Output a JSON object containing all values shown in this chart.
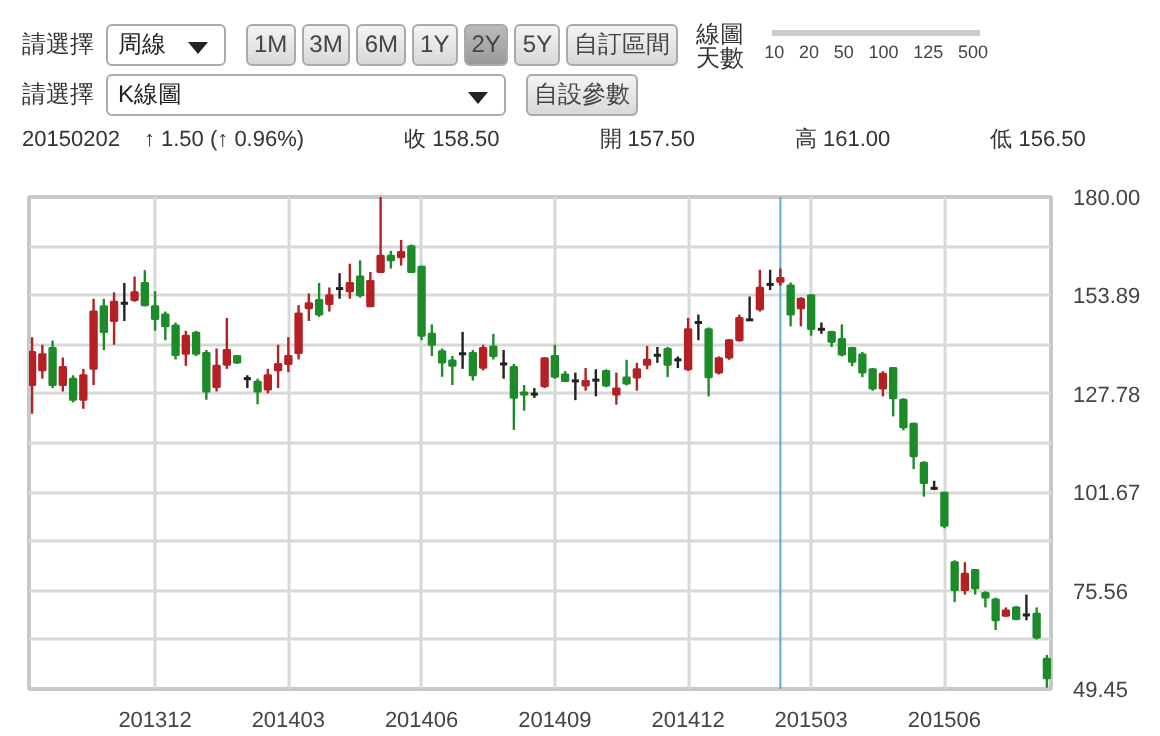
{
  "chart_data": {
    "type": "candlestick",
    "categories": [
      null,
      null,
      null,
      null,
      null,
      null,
      null,
      null,
      null,
      null,
      null,
      null,
      "201312",
      null,
      null,
      null,
      null,
      null,
      null,
      null,
      null,
      null,
      null,
      null,
      null,
      "201403",
      null,
      null,
      null,
      null,
      null,
      null,
      null,
      null,
      null,
      null,
      null,
      null,
      "201406",
      null,
      null,
      null,
      null,
      null,
      null,
      null,
      null,
      null,
      null,
      null,
      null,
      "201409",
      null,
      null,
      null,
      null,
      null,
      null,
      null,
      null,
      null,
      null,
      null,
      null,
      "201412",
      null,
      null,
      null,
      null,
      null,
      null,
      null,
      null,
      null,
      null,
      null,
      "201503",
      null,
      null,
      null,
      null,
      null,
      null,
      null,
      null,
      null,
      null,
      null,
      null,
      "201506",
      null,
      null,
      null,
      null,
      null,
      null,
      null,
      null,
      null,
      null
    ],
    "ohlc": [
      [
        130.1,
        142.8,
        122.5,
        138.9
      ],
      [
        134.0,
        140.8,
        131.8,
        138.3
      ],
      [
        139.9,
        141.9,
        129.3,
        130.1
      ],
      [
        130.1,
        137.4,
        128.4,
        134.9
      ],
      [
        131.8,
        132.7,
        125.5,
        126.2
      ],
      [
        126.2,
        134.4,
        123.8,
        132.7
      ],
      [
        134.4,
        153.0,
        130.1,
        149.6
      ],
      [
        151.0,
        153.0,
        139.4,
        144.2
      ],
      [
        147.1,
        154.7,
        140.8,
        152.2
      ],
      [
        151.8,
        157.2,
        147.1,
        151.8
      ],
      [
        152.7,
        158.9,
        152.2,
        154.7
      ],
      [
        157.2,
        160.6,
        151.0,
        151.3
      ],
      [
        151.0,
        155.0,
        144.5,
        147.6
      ],
      [
        148.8,
        149.6,
        142.0,
        145.7
      ],
      [
        145.9,
        146.7,
        136.9,
        138.1
      ],
      [
        138.4,
        144.5,
        135.2,
        143.2
      ],
      [
        144.0,
        144.5,
        137.8,
        138.4
      ],
      [
        138.6,
        139.4,
        126.2,
        128.4
      ],
      [
        129.6,
        139.8,
        128.4,
        135.2
      ],
      [
        135.5,
        147.9,
        134.4,
        139.4
      ],
      [
        137.8,
        138.1,
        135.7,
        136.1
      ],
      [
        131.8,
        132.7,
        129.3,
        131.8
      ],
      [
        131.0,
        131.8,
        125.0,
        128.4
      ],
      [
        128.9,
        134.4,
        127.9,
        132.7
      ],
      [
        134.0,
        140.8,
        129.3,
        135.7
      ],
      [
        135.7,
        142.8,
        133.5,
        137.8
      ],
      [
        138.6,
        151.3,
        136.9,
        149.1
      ],
      [
        150.5,
        154.4,
        147.1,
        151.8
      ],
      [
        152.7,
        157.2,
        148.2,
        148.8
      ],
      [
        151.6,
        156.0,
        149.6,
        153.9
      ],
      [
        155.7,
        159.8,
        153.0,
        155.7
      ],
      [
        155.0,
        162.3,
        153.0,
        157.2
      ],
      [
        158.9,
        163.2,
        153.3,
        153.9
      ],
      [
        151.0,
        160.1,
        151.0,
        157.7
      ],
      [
        160.1,
        180.0,
        160.1,
        164.4
      ],
      [
        164.4,
        165.7,
        161.0,
        163.2
      ],
      [
        164.0,
        168.6,
        161.8,
        165.4
      ],
      [
        166.9,
        167.4,
        159.8,
        160.1
      ],
      [
        161.5,
        161.8,
        142.0,
        143.2
      ],
      [
        143.7,
        146.2,
        137.8,
        140.8
      ],
      [
        139.1,
        139.8,
        132.3,
        136.1
      ],
      [
        136.6,
        137.8,
        130.1,
        135.2
      ],
      [
        138.4,
        144.2,
        134.4,
        138.4
      ],
      [
        138.6,
        139.4,
        131.3,
        132.7
      ],
      [
        134.7,
        140.8,
        134.0,
        139.9
      ],
      [
        140.3,
        143.7,
        136.9,
        137.8
      ],
      [
        135.7,
        139.4,
        131.8,
        135.7
      ],
      [
        134.9,
        135.7,
        118.2,
        126.7
      ],
      [
        128.1,
        130.1,
        123.3,
        127.6
      ],
      [
        127.7,
        129.3,
        126.7,
        127.7
      ],
      [
        129.8,
        137.4,
        129.3,
        137.2
      ],
      [
        137.8,
        140.8,
        131.8,
        132.3
      ],
      [
        132.9,
        133.8,
        130.9,
        131.2
      ],
      [
        131.2,
        133.4,
        126.1,
        131.2
      ],
      [
        130.0,
        134.6,
        128.6,
        131.2
      ],
      [
        131.4,
        134.3,
        127.1,
        131.4
      ],
      [
        133.8,
        134.3,
        129.5,
        130.0
      ],
      [
        127.6,
        133.4,
        124.9,
        129.2
      ],
      [
        132.1,
        136.8,
        130.0,
        130.5
      ],
      [
        132.1,
        136.0,
        128.6,
        134.3
      ],
      [
        135.5,
        140.5,
        134.3,
        136.8
      ],
      [
        138.0,
        140.2,
        136.0,
        138.0
      ],
      [
        139.7,
        140.2,
        132.2,
        135.5
      ],
      [
        136.8,
        137.7,
        134.6,
        136.8
      ],
      [
        134.3,
        147.9,
        133.8,
        144.9
      ],
      [
        146.7,
        148.8,
        142.0,
        146.7
      ],
      [
        144.9,
        145.4,
        127.1,
        132.2
      ],
      [
        133.4,
        137.7,
        132.9,
        137.2
      ],
      [
        137.4,
        142.3,
        136.8,
        142.0
      ],
      [
        142.0,
        148.8,
        141.6,
        147.9
      ],
      [
        147.4,
        153.6,
        147.1,
        147.4
      ],
      [
        150.2,
        160.7,
        149.6,
        155.9
      ],
      [
        156.8,
        160.7,
        155.3,
        156.8
      ],
      [
        157.5,
        161.0,
        156.5,
        158.5
      ],
      [
        156.5,
        157.3,
        145.7,
        148.8
      ],
      [
        150.5,
        153.4,
        145.7,
        153.0
      ],
      [
        153.9,
        154.2,
        143.2,
        145.0
      ],
      [
        144.9,
        146.7,
        143.7,
        144.9
      ],
      [
        144.2,
        144.5,
        140.2,
        141.6
      ],
      [
        142.3,
        146.2,
        137.7,
        138.2
      ],
      [
        139.9,
        140.2,
        135.1,
        136.3
      ],
      [
        138.2,
        138.9,
        132.2,
        133.4
      ],
      [
        134.3,
        134.6,
        128.6,
        129.2
      ],
      [
        129.2,
        133.8,
        127.1,
        133.1
      ],
      [
        134.6,
        134.6,
        121.8,
        126.6
      ],
      [
        126.2,
        126.6,
        118.1,
        118.9
      ],
      [
        119.8,
        120.1,
        107.8,
        111.2
      ],
      [
        109.5,
        109.9,
        100.5,
        104.1
      ],
      [
        102.7,
        104.7,
        102.2,
        102.7
      ],
      [
        101.5,
        101.8,
        92.1,
        92.8
      ],
      [
        83.1,
        83.6,
        72.5,
        75.7
      ],
      [
        75.7,
        83.1,
        74.5,
        80.0
      ],
      [
        81.0,
        81.3,
        74.5,
        76.2
      ],
      [
        74.9,
        75.4,
        71.1,
        73.7
      ],
      [
        73.2,
        73.7,
        65.1,
        67.7
      ],
      [
        68.9,
        71.1,
        68.6,
        70.3
      ],
      [
        71.1,
        71.5,
        67.7,
        68.0
      ],
      [
        69.1,
        74.5,
        67.7,
        69.1
      ],
      [
        69.4,
        71.1,
        62.6,
        63.1
      ],
      [
        57.5,
        58.5,
        49.8,
        52.3
      ]
    ],
    "colors": [
      "#b52025",
      "#b52025",
      "#1e8b2a",
      "#b52025",
      "#1e8b2a",
      "#b52025",
      "#b52025",
      "#1e8b2a",
      "#b52025",
      "#222222",
      "#b52025",
      "#1e8b2a",
      "#1e8b2a",
      "#1e8b2a",
      "#1e8b2a",
      "#b52025",
      "#1e8b2a",
      "#1e8b2a",
      "#b52025",
      "#b52025",
      "#1e8b2a",
      "#222222",
      "#1e8b2a",
      "#b52025",
      "#b52025",
      "#b52025",
      "#b52025",
      "#b52025",
      "#1e8b2a",
      "#b52025",
      "#222222",
      "#b52025",
      "#1e8b2a",
      "#b52025",
      "#b52025",
      "#1e8b2a",
      "#b52025",
      "#1e8b2a",
      "#1e8b2a",
      "#1e8b2a",
      "#1e8b2a",
      "#1e8b2a",
      "#222222",
      "#1e8b2a",
      "#b52025",
      "#1e8b2a",
      "#222222",
      "#1e8b2a",
      "#1e8b2a",
      "#222222",
      "#b52025",
      "#1e8b2a",
      "#1e8b2a",
      "#222222",
      "#b52025",
      "#222222",
      "#1e8b2a",
      "#b52025",
      "#1e8b2a",
      "#b52025",
      "#b52025",
      "#222222",
      "#1e8b2a",
      "#222222",
      "#b52025",
      "#222222",
      "#1e8b2a",
      "#b52025",
      "#b52025",
      "#b52025",
      "#222222",
      "#b52025",
      "#222222",
      "#b52025",
      "#1e8b2a",
      "#b52025",
      "#1e8b2a",
      "#222222",
      "#1e8b2a",
      "#1e8b2a",
      "#1e8b2a",
      "#1e8b2a",
      "#1e8b2a",
      "#b52025",
      "#1e8b2a",
      "#1e8b2a",
      "#1e8b2a",
      "#1e8b2a",
      "#222222",
      "#1e8b2a",
      "#1e8b2a",
      "#b52025",
      "#1e8b2a",
      "#1e8b2a",
      "#1e8b2a",
      "#b52025",
      "#1e8b2a",
      "#222222",
      "#1e8b2a",
      "#1e8b2a"
    ],
    "ylim": [
      49.45,
      180
    ],
    "yticks": [
      {
        "value": 49.45,
        "label": "49.45"
      },
      {
        "value": 62.505,
        "label": null
      },
      {
        "value": 75.56,
        "label": "75.56"
      },
      {
        "value": 88.615,
        "label": null
      },
      {
        "value": 101.67,
        "label": "101.67"
      },
      {
        "value": 114.725,
        "label": null
      },
      {
        "value": 127.78,
        "label": "127.78"
      },
      {
        "value": 140.835,
        "label": null
      },
      {
        "value": 153.89,
        "label": "153.89"
      },
      {
        "value": 166.945,
        "label": null
      },
      {
        "value": 180,
        "label": "180.00"
      }
    ],
    "grid": true,
    "annotations": [
      "請選擇",
      "周線",
      "1M",
      "3M",
      "6M",
      "1Y",
      "2Y",
      "5Y",
      "自訂區間",
      "線圖天數",
      "10",
      "20",
      "50",
      "100",
      "125",
      "500",
      "請選擇",
      "K線圖",
      "自設參數",
      "20150202",
      "↑ 1.50 (↑ 0.96%)",
      "收 158.50",
      "開 157.50",
      "高 161.00",
      "低 156.50"
    ]
  }
}
